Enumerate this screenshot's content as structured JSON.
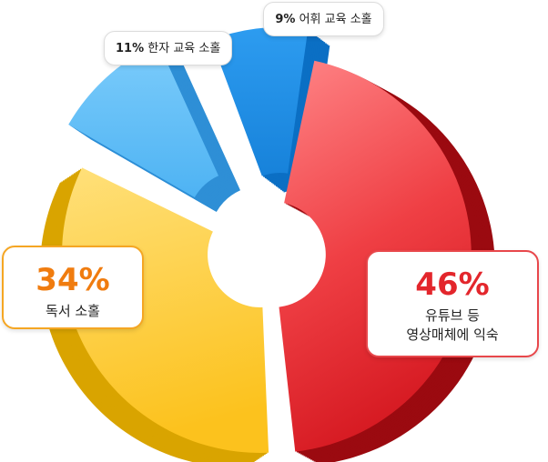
{
  "chart_data": {
    "type": "pie",
    "style": "3d-donut-exploded",
    "slices": [
      {
        "label": "유튜브 등\n영상매체에 익숙",
        "label_lines": [
          "유튜브 등",
          "영상매체에 익숙"
        ],
        "value": 46,
        "pct_text": "46%",
        "color": "#e8393f"
      },
      {
        "label": "독서 소홀",
        "value": 34,
        "pct_text": "34%",
        "color": "#fdc93a"
      },
      {
        "label": "한자 교육 소홀",
        "value": 11,
        "pct_text": "11%",
        "color": "#5bbcf6"
      },
      {
        "label": "어휘 교육 소홀",
        "value": 9,
        "pct_text": "9%",
        "color": "#1d8fe6"
      }
    ]
  }
}
